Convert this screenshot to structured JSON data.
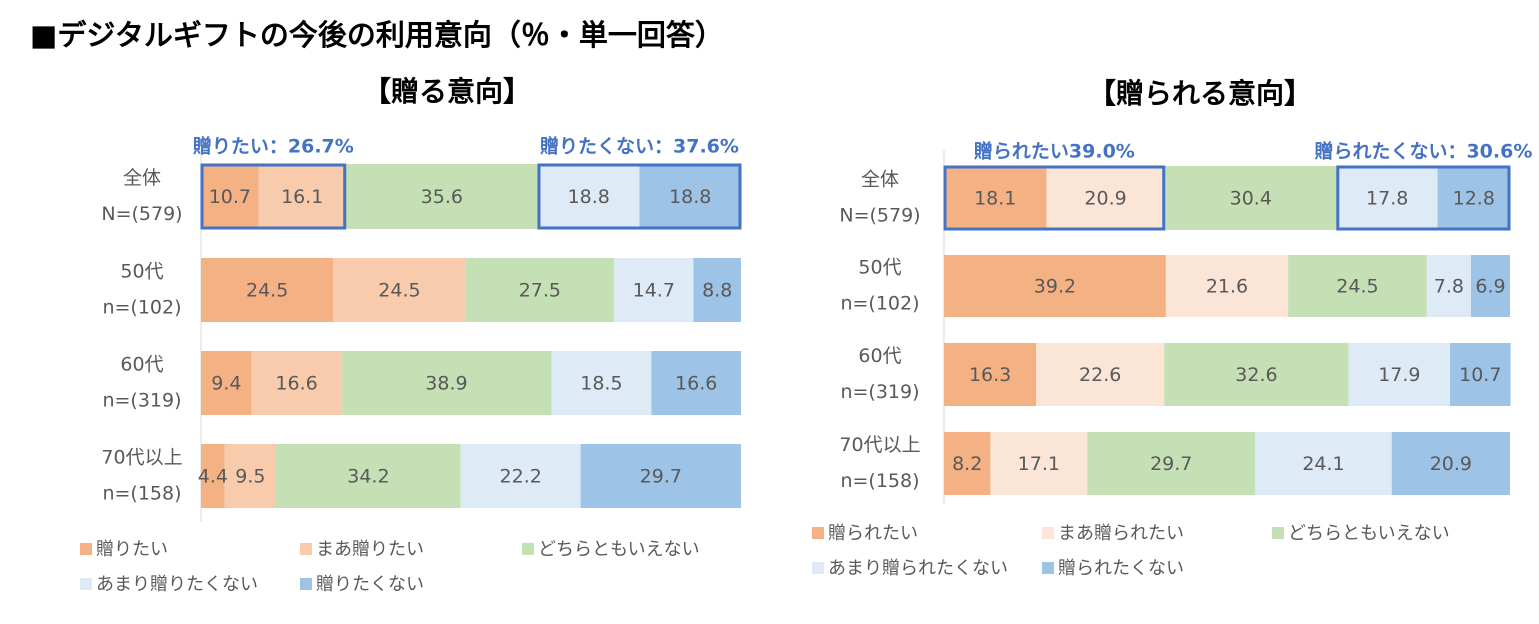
{
  "page": {
    "title": "■デジタルギフトの今後の利用意向（％・単一回答）"
  },
  "chart_data": [
    {
      "type": "bar",
      "orientation": "horizontal-stacked-100",
      "title": "【贈る意向】",
      "categories": [
        {
          "label1": "全体",
          "label2": "N=(579)"
        },
        {
          "label1": "50代",
          "label2": "n=(102)"
        },
        {
          "label1": "60代",
          "label2": "n=(319)"
        },
        {
          "label1": "70代以上",
          "label2": "n=(158)"
        }
      ],
      "series": [
        {
          "name": "贈りたい",
          "color": "#f4b183",
          "values": [
            10.7,
            24.5,
            9.4,
            4.4
          ]
        },
        {
          "name": "まあ贈りたい",
          "color": "#f8cbad",
          "values": [
            16.1,
            24.5,
            16.6,
            9.5
          ]
        },
        {
          "name": "どちらともいえない",
          "color": "#c5e0b4",
          "values": [
            35.6,
            27.5,
            38.9,
            34.2
          ]
        },
        {
          "name": "あまり贈りたくない",
          "color": "#deebf7",
          "values": [
            18.8,
            14.7,
            18.5,
            22.2
          ]
        },
        {
          "name": "贈りたくない",
          "color": "#9dc3e6",
          "values": [
            18.8,
            8.8,
            16.6,
            29.7
          ]
        }
      ],
      "annotations": [
        {
          "text": "贈りたい：26.7%",
          "from_series": 0,
          "to_series": 1
        },
        {
          "text": "贈りたくない：37.6%",
          "from_series": 3,
          "to_series": 4
        }
      ],
      "xlim": [
        0,
        100
      ]
    },
    {
      "type": "bar",
      "orientation": "horizontal-stacked-100",
      "title": "【贈られる意向】",
      "categories": [
        {
          "label1": "全体",
          "label2": "N=(579)"
        },
        {
          "label1": "50代",
          "label2": "n=(102)"
        },
        {
          "label1": "60代",
          "label2": "n=(319)"
        },
        {
          "label1": "70代以上",
          "label2": "n=(158)"
        }
      ],
      "series": [
        {
          "name": "贈られたい",
          "color": "#f4b183",
          "values": [
            18.1,
            39.2,
            16.3,
            8.2
          ]
        },
        {
          "name": "まあ贈られたい",
          "color": "#fbe5d6",
          "values": [
            20.9,
            21.6,
            22.6,
            17.1
          ]
        },
        {
          "name": "どちらともいえない",
          "color": "#c5e0b4",
          "values": [
            30.4,
            24.5,
            32.6,
            29.7
          ]
        },
        {
          "name": "あまり贈られたくない",
          "color": "#deebf7",
          "values": [
            17.8,
            7.8,
            17.9,
            24.1
          ]
        },
        {
          "name": "贈られたくない",
          "color": "#9dc3e6",
          "values": [
            12.8,
            6.9,
            10.7,
            20.9
          ]
        }
      ],
      "annotations": [
        {
          "text": "贈られたい39.0%",
          "from_series": 0,
          "to_series": 1
        },
        {
          "text": "贈られたくない：30.6%",
          "from_series": 3,
          "to_series": 4
        }
      ],
      "xlim": [
        0,
        100
      ]
    }
  ]
}
